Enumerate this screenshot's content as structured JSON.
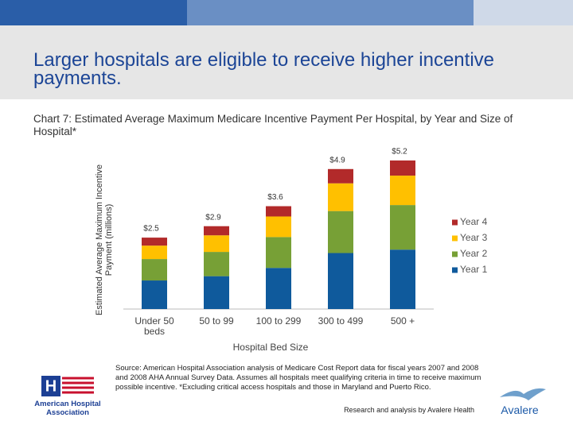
{
  "slide": {
    "title": "Larger hospitals are eligible to receive higher incentive payments.",
    "source": "Source: American Hospital Association analysis of Medicare Cost Report data for fiscal years 2007 and 2008 and 2008 AHA Annual Survey Data.  Assumes all hospitals meet qualifying criteria in time to receive maximum possible incentive. *Excluding critical access hospitals and those in Maryland and Puerto Rico.",
    "credit": "Research and analysis by Avalere Health",
    "aha_logo": "American Hospital Association",
    "avalere_logo": "Avalere"
  },
  "chart_data": {
    "type": "stacked-bar",
    "title": "Chart 7: Estimated Average Maximum Medicare Incentive Payment Per Hospital, by Year and Size of Hospital*",
    "y_label": "Estimated Average Maximum Incentive Payment (millions)",
    "x_label": "Hospital Bed Size",
    "categories": [
      "Under 50 beds",
      "50 to 99",
      "100 to 299",
      "300 to 499",
      "500 +"
    ],
    "series": [
      {
        "name": "Year 1",
        "color": "#0f5a9c",
        "values": [
          1.0,
          1.15,
          1.44,
          1.96,
          2.08
        ]
      },
      {
        "name": "Year 2",
        "color": "#77a036",
        "values": [
          0.75,
          0.85,
          1.08,
          1.47,
          1.56
        ]
      },
      {
        "name": "Year 3",
        "color": "#ffc000",
        "values": [
          0.47,
          0.58,
          0.72,
          0.97,
          1.03
        ]
      },
      {
        "name": "Year 4",
        "color": "#b22a2a",
        "values": [
          0.28,
          0.32,
          0.36,
          0.5,
          0.53
        ]
      }
    ],
    "totals": {
      "values": [
        2.5,
        2.9,
        3.6,
        4.9,
        5.2
      ],
      "value_labels": [
        "$2.5",
        "$2.9",
        "$3.6",
        "$4.9",
        "$5.2"
      ]
    },
    "legend": "right"
  }
}
